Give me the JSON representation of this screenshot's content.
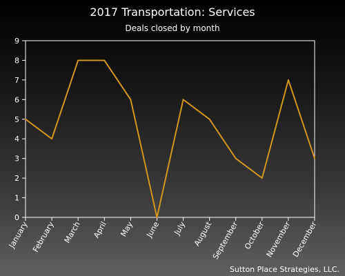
{
  "chart_data": {
    "type": "line",
    "title": "2017 Transportation: Services",
    "subtitle": "Deals closed by month",
    "xlabel": "",
    "ylabel": "",
    "categories": [
      "January",
      "February",
      "March",
      "April",
      "May",
      "June",
      "July",
      "August",
      "September",
      "October",
      "November",
      "December"
    ],
    "series": [
      {
        "values": [
          5,
          4,
          8,
          8,
          6,
          0,
          6,
          5,
          3,
          2,
          7,
          3
        ],
        "color": "#d4961e"
      }
    ],
    "ylim": [
      0,
      9
    ],
    "yticks": [
      0,
      1,
      2,
      3,
      4,
      5,
      6,
      7,
      8,
      9
    ],
    "grid": false,
    "legend": "none",
    "credit": "Sutton Place Strategies, LLC."
  },
  "colors": {
    "axis": "#ffffff",
    "text": "#ffffff",
    "line": "#d4961e"
  }
}
